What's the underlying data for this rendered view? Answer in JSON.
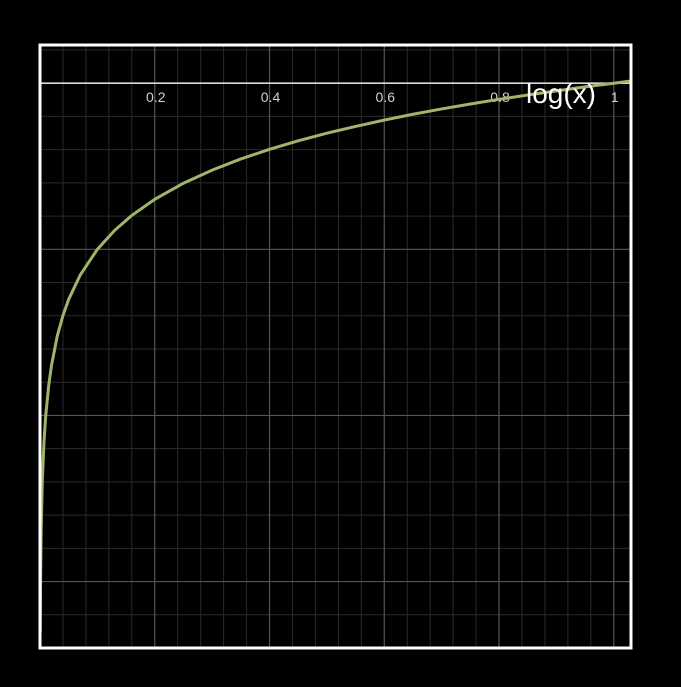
{
  "chart_data": {
    "type": "line",
    "function_label": "log(x)",
    "xlim": [
      0,
      1.03
    ],
    "ylim": [
      -3.4,
      0.23
    ],
    "x_ticks": [
      {
        "value": 0.2,
        "label": "0.2"
      },
      {
        "value": 0.4,
        "label": "0.4"
      },
      {
        "value": 0.6,
        "label": "0.6"
      },
      {
        "value": 0.8,
        "label": "0.8"
      },
      {
        "value": 1,
        "label": "1"
      }
    ],
    "grid": true,
    "series": [
      {
        "color": "#9fb56a",
        "x": [
          0.0005,
          0.001,
          0.002,
          0.004,
          0.007,
          0.01,
          0.015,
          0.02,
          0.03,
          0.04,
          0.05,
          0.07,
          0.1,
          0.13,
          0.16,
          0.2,
          0.25,
          0.3,
          0.35,
          0.4,
          0.45,
          0.5,
          0.55,
          0.6,
          0.65,
          0.7,
          0.75,
          0.8,
          0.85,
          0.9,
          0.95,
          1.0,
          1.03
        ],
        "y": [
          -3.301,
          -3.0,
          -2.699,
          -2.398,
          -2.155,
          -2.0,
          -1.824,
          -1.699,
          -1.523,
          -1.398,
          -1.301,
          -1.155,
          -1.0,
          -0.886,
          -0.796,
          -0.699,
          -0.602,
          -0.523,
          -0.456,
          -0.398,
          -0.347,
          -0.301,
          -0.26,
          -0.222,
          -0.187,
          -0.155,
          -0.125,
          -0.097,
          -0.071,
          -0.046,
          -0.022,
          0.0,
          0.013
        ]
      }
    ]
  },
  "colors": {
    "background": "#000000",
    "frame": "#ffffff",
    "grid_minor": "#2a2a2a",
    "grid_major": "#555555",
    "axis": "#d9d9d9"
  }
}
